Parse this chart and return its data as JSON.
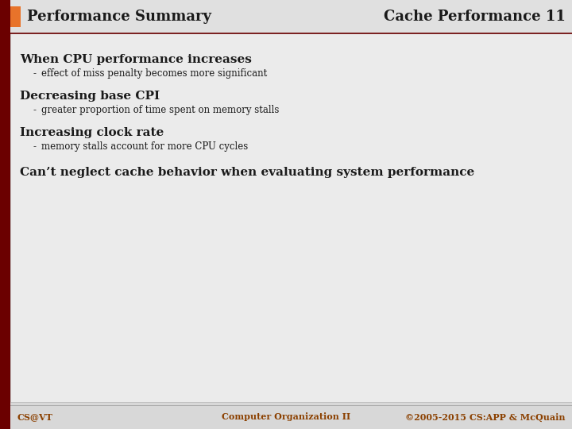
{
  "title_left": "Performance Summary",
  "title_right": "Cache Performance 11",
  "title_bg_color": "#E0E0E0",
  "title_square_color": "#E8732A",
  "left_bar_color": "#6B0000",
  "header_line_color": "#6B0000",
  "bg_color": "#D8D8D8",
  "content_bg_color": "#EBEBEB",
  "heading1": "When CPU performance increases",
  "bullet1": "effect of miss penalty becomes more significant",
  "heading2": "Decreasing base CPI",
  "bullet2": "greater proportion of time spent on memory stalls",
  "heading3": "Increasing clock rate",
  "bullet3": "memory stalls account for more CPU cycles",
  "heading4": "Can’t neglect cache behavior when evaluating system performance",
  "footer_left": "CS@VT",
  "footer_center": "Computer Organization II",
  "footer_right": "©2005-2015 CS:APP & McQuain",
  "footer_color": "#8B4000",
  "text_color": "#1A1A1A",
  "heading_fontsize": 11,
  "bullet_fontsize": 8.5,
  "footer_fontsize": 8,
  "title_fontsize": 13
}
